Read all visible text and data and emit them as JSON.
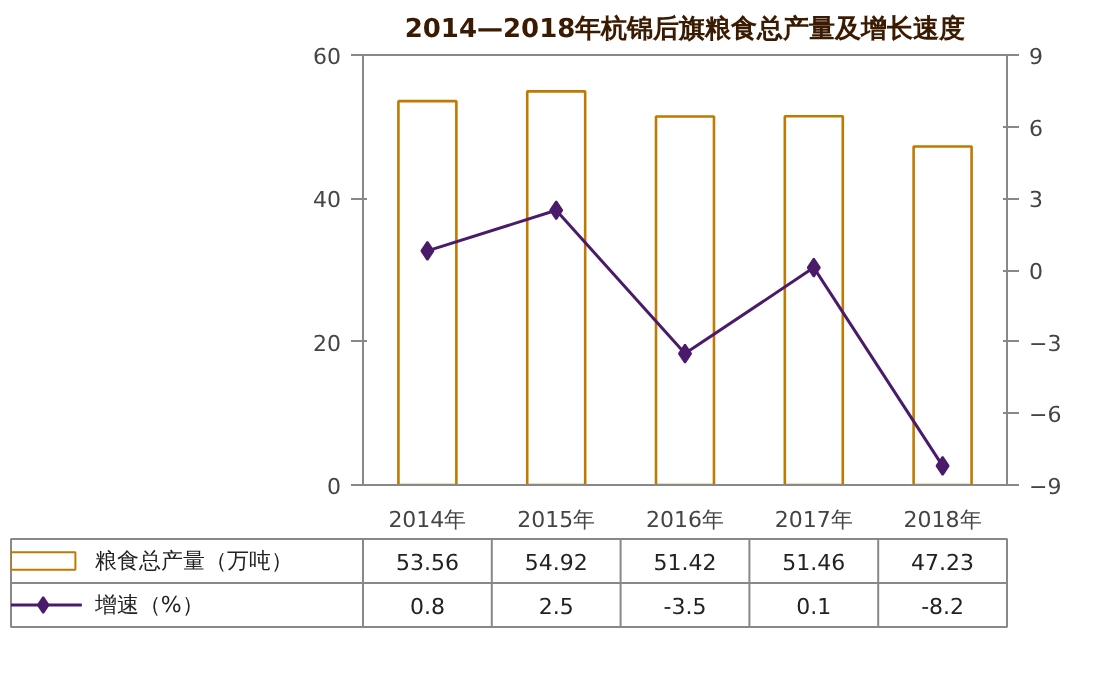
{
  "chart_data": {
    "type": "bar",
    "title": "2014—2018年杭锦后旗粮食总产量及增长速度",
    "categories": [
      "2014年",
      "2015年",
      "2016年",
      "2017年",
      "2018年"
    ],
    "series": [
      {
        "name": "粮食总产量（万吨）",
        "color": "#c07a00",
        "values": [
          53.56,
          54.92,
          51.42,
          51.46,
          47.23
        ]
      },
      {
        "name": "增速（%）",
        "type": "line",
        "axis": "y2",
        "color": "#4b1b6b",
        "values": [
          0.8,
          2.5,
          -3.5,
          0.1,
          -8.2
        ]
      }
    ],
    "ylim": [
      0,
      60
    ],
    "yticks": [
      0,
      20,
      40,
      60
    ],
    "y2lim": [
      -9,
      9
    ],
    "y2ticks": [
      -9,
      -6,
      -3,
      0,
      3,
      6,
      9
    ],
    "marker": "diamond",
    "data_labels": true,
    "legend": "bottom"
  }
}
